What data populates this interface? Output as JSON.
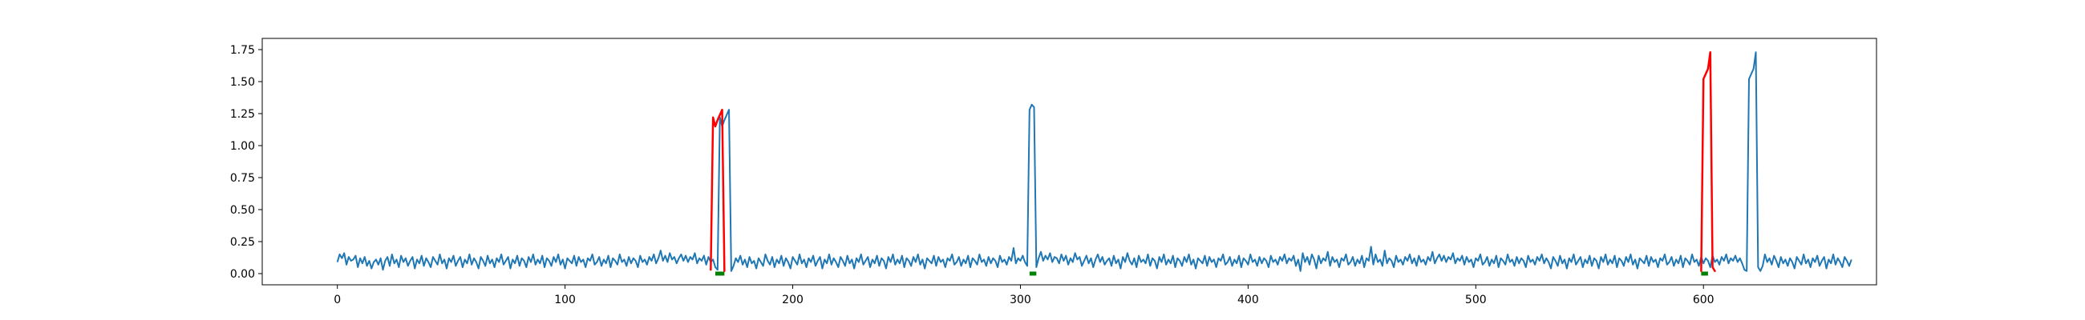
{
  "chart_data": {
    "type": "line",
    "title": "",
    "xlabel": "",
    "ylabel": "",
    "xlim": [
      -33,
      676
    ],
    "ylim": [
      -0.0875,
      1.8375
    ],
    "grid": false,
    "legend": "none",
    "x_ticks": [
      {
        "value": 0,
        "label": "0"
      },
      {
        "value": 100,
        "label": "100"
      },
      {
        "value": 200,
        "label": "200"
      },
      {
        "value": 300,
        "label": "300"
      },
      {
        "value": 400,
        "label": "400"
      },
      {
        "value": 500,
        "label": "500"
      },
      {
        "value": 600,
        "label": "600"
      }
    ],
    "y_ticks": [
      {
        "value": 0.0,
        "label": "0.00"
      },
      {
        "value": 0.25,
        "label": "0.25"
      },
      {
        "value": 0.5,
        "label": "0.50"
      },
      {
        "value": 0.75,
        "label": "0.75"
      },
      {
        "value": 1.0,
        "label": "1.00"
      },
      {
        "value": 1.25,
        "label": "1.25"
      },
      {
        "value": 1.5,
        "label": "1.50"
      },
      {
        "value": 1.75,
        "label": "1.75"
      }
    ],
    "series": [
      {
        "role": "signal",
        "color": "#1f77b4",
        "x_start": 0,
        "x_step": 1,
        "values": [
          0.09,
          0.15,
          0.12,
          0.16,
          0.07,
          0.13,
          0.1,
          0.11,
          0.14,
          0.05,
          0.12,
          0.08,
          0.13,
          0.06,
          0.1,
          0.04,
          0.09,
          0.11,
          0.07,
          0.12,
          0.03,
          0.1,
          0.13,
          0.06,
          0.15,
          0.08,
          0.11,
          0.05,
          0.14,
          0.09,
          0.12,
          0.06,
          0.1,
          0.13,
          0.04,
          0.11,
          0.08,
          0.14,
          0.06,
          0.12,
          0.09,
          0.05,
          0.13,
          0.1,
          0.07,
          0.15,
          0.08,
          0.11,
          0.04,
          0.12,
          0.09,
          0.14,
          0.06,
          0.1,
          0.13,
          0.05,
          0.11,
          0.08,
          0.15,
          0.07,
          0.12,
          0.09,
          0.04,
          0.13,
          0.1,
          0.06,
          0.14,
          0.08,
          0.11,
          0.05,
          0.12,
          0.09,
          0.15,
          0.07,
          0.1,
          0.13,
          0.04,
          0.11,
          0.08,
          0.14,
          0.06,
          0.12,
          0.1,
          0.05,
          0.13,
          0.09,
          0.15,
          0.07,
          0.11,
          0.08,
          0.14,
          0.05,
          0.12,
          0.1,
          0.06,
          0.13,
          0.09,
          0.15,
          0.07,
          0.11,
          0.04,
          0.12,
          0.1,
          0.08,
          0.14,
          0.06,
          0.13,
          0.09,
          0.11,
          0.05,
          0.12,
          0.1,
          0.15,
          0.07,
          0.09,
          0.13,
          0.06,
          0.11,
          0.08,
          0.14,
          0.05,
          0.12,
          0.1,
          0.07,
          0.15,
          0.09,
          0.11,
          0.06,
          0.13,
          0.08,
          0.12,
          0.1,
          0.05,
          0.14,
          0.09,
          0.11,
          0.07,
          0.13,
          0.1,
          0.15,
          0.08,
          0.12,
          0.18,
          0.1,
          0.14,
          0.09,
          0.16,
          0.11,
          0.13,
          0.08,
          0.12,
          0.15,
          0.1,
          0.14,
          0.09,
          0.13,
          0.11,
          0.16,
          0.08,
          0.12,
          0.1,
          0.14,
          0.07,
          0.13,
          0.09,
          0.11,
          0.05,
          0.03,
          1.22,
          1.15,
          1.2,
          1.24,
          1.28,
          0.02,
          0.06,
          0.12,
          0.09,
          0.14,
          0.07,
          0.11,
          0.05,
          0.13,
          0.08,
          0.1,
          0.04,
          0.12,
          0.09,
          0.06,
          0.15,
          0.1,
          0.07,
          0.13,
          0.05,
          0.11,
          0.08,
          0.14,
          0.06,
          0.12,
          0.09,
          0.04,
          0.13,
          0.1,
          0.07,
          0.15,
          0.08,
          0.11,
          0.05,
          0.12,
          0.09,
          0.14,
          0.06,
          0.1,
          0.13,
          0.04,
          0.11,
          0.08,
          0.15,
          0.07,
          0.12,
          0.09,
          0.05,
          0.13,
          0.1,
          0.06,
          0.14,
          0.08,
          0.11,
          0.04,
          0.12,
          0.09,
          0.15,
          0.07,
          0.1,
          0.13,
          0.05,
          0.11,
          0.08,
          0.14,
          0.06,
          0.12,
          0.1,
          0.04,
          0.13,
          0.09,
          0.15,
          0.07,
          0.11,
          0.08,
          0.14,
          0.05,
          0.12,
          0.1,
          0.06,
          0.13,
          0.09,
          0.15,
          0.07,
          0.11,
          0.04,
          0.12,
          0.1,
          0.08,
          0.14,
          0.06,
          0.13,
          0.09,
          0.11,
          0.05,
          0.12,
          0.1,
          0.15,
          0.07,
          0.09,
          0.13,
          0.06,
          0.11,
          0.08,
          0.14,
          0.05,
          0.12,
          0.1,
          0.07,
          0.15,
          0.09,
          0.11,
          0.06,
          0.13,
          0.08,
          0.12,
          0.1,
          0.05,
          0.14,
          0.09,
          0.11,
          0.07,
          0.13,
          0.1,
          0.2,
          0.08,
          0.12,
          0.1,
          0.14,
          0.09,
          0.06,
          1.28,
          1.32,
          1.3,
          0.05,
          0.12,
          0.17,
          0.1,
          0.14,
          0.11,
          0.16,
          0.09,
          0.13,
          0.12,
          0.08,
          0.15,
          0.1,
          0.14,
          0.07,
          0.12,
          0.09,
          0.16,
          0.11,
          0.13,
          0.06,
          0.1,
          0.14,
          0.08,
          0.12,
          0.05,
          0.11,
          0.15,
          0.09,
          0.13,
          0.07,
          0.1,
          0.12,
          0.06,
          0.14,
          0.08,
          0.11,
          0.04,
          0.13,
          0.09,
          0.16,
          0.1,
          0.07,
          0.12,
          0.05,
          0.14,
          0.09,
          0.11,
          0.08,
          0.15,
          0.06,
          0.12,
          0.1,
          0.04,
          0.13,
          0.09,
          0.15,
          0.07,
          0.11,
          0.08,
          0.14,
          0.05,
          0.12,
          0.1,
          0.06,
          0.13,
          0.09,
          0.15,
          0.07,
          0.11,
          0.04,
          0.12,
          0.1,
          0.08,
          0.14,
          0.06,
          0.13,
          0.09,
          0.11,
          0.05,
          0.12,
          0.1,
          0.15,
          0.07,
          0.09,
          0.13,
          0.06,
          0.11,
          0.08,
          0.14,
          0.05,
          0.12,
          0.1,
          0.07,
          0.15,
          0.09,
          0.11,
          0.06,
          0.13,
          0.08,
          0.12,
          0.1,
          0.05,
          0.14,
          0.09,
          0.11,
          0.07,
          0.13,
          0.1,
          0.15,
          0.08,
          0.12,
          0.1,
          0.14,
          0.06,
          0.11,
          0.02,
          0.16,
          0.09,
          0.13,
          0.07,
          0.15,
          0.11,
          0.04,
          0.14,
          0.08,
          0.12,
          0.1,
          0.17,
          0.06,
          0.13,
          0.09,
          0.11,
          0.05,
          0.12,
          0.1,
          0.15,
          0.07,
          0.09,
          0.13,
          0.06,
          0.11,
          0.08,
          0.14,
          0.05,
          0.12,
          0.1,
          0.21,
          0.07,
          0.15,
          0.09,
          0.11,
          0.06,
          0.18,
          0.08,
          0.12,
          0.1,
          0.05,
          0.14,
          0.09,
          0.11,
          0.07,
          0.13,
          0.1,
          0.15,
          0.08,
          0.12,
          0.06,
          0.14,
          0.09,
          0.11,
          0.07,
          0.13,
          0.1,
          0.17,
          0.08,
          0.12,
          0.15,
          0.1,
          0.14,
          0.09,
          0.13,
          0.11,
          0.16,
          0.08,
          0.12,
          0.1,
          0.14,
          0.07,
          0.13,
          0.09,
          0.11,
          0.05,
          0.12,
          0.1,
          0.15,
          0.07,
          0.09,
          0.13,
          0.06,
          0.11,
          0.08,
          0.14,
          0.05,
          0.12,
          0.1,
          0.07,
          0.15,
          0.09,
          0.11,
          0.06,
          0.13,
          0.08,
          0.12,
          0.1,
          0.05,
          0.14,
          0.09,
          0.11,
          0.07,
          0.13,
          0.1,
          0.15,
          0.08,
          0.12,
          0.09,
          0.04,
          0.13,
          0.1,
          0.06,
          0.14,
          0.08,
          0.11,
          0.04,
          0.12,
          0.09,
          0.15,
          0.07,
          0.1,
          0.13,
          0.05,
          0.11,
          0.08,
          0.14,
          0.06,
          0.12,
          0.1,
          0.04,
          0.13,
          0.09,
          0.15,
          0.07,
          0.11,
          0.08,
          0.14,
          0.05,
          0.12,
          0.1,
          0.06,
          0.13,
          0.09,
          0.15,
          0.07,
          0.11,
          0.04,
          0.12,
          0.1,
          0.08,
          0.14,
          0.06,
          0.13,
          0.09,
          0.11,
          0.05,
          0.12,
          0.1,
          0.15,
          0.07,
          0.09,
          0.13,
          0.06,
          0.11,
          0.08,
          0.14,
          0.05,
          0.12,
          0.1,
          0.07,
          0.15,
          0.09,
          0.11,
          0.06,
          0.13,
          0.08,
          0.12,
          0.1,
          0.05,
          0.14,
          0.09,
          0.11,
          0.07,
          0.13,
          0.1,
          0.15,
          0.08,
          0.12,
          0.1,
          0.14,
          0.09,
          0.12,
          0.08,
          0.03,
          0.02,
          1.52,
          1.56,
          1.6,
          1.73,
          0.05,
          0.02,
          0.06,
          0.15,
          0.09,
          0.12,
          0.07,
          0.14,
          0.1,
          0.05,
          0.13,
          0.08,
          0.11,
          0.06,
          0.12,
          0.09,
          0.04,
          0.13,
          0.1,
          0.07,
          0.15,
          0.08,
          0.11,
          0.05,
          0.12,
          0.09,
          0.14,
          0.06,
          0.1,
          0.13,
          0.04,
          0.11,
          0.08,
          0.15,
          0.07,
          0.12,
          0.09,
          0.05,
          0.13,
          0.1,
          0.06,
          0.11
        ]
      },
      {
        "role": "anomaly",
        "color": "#ff0000",
        "segments": [
          {
            "x": [
              164,
              165,
              166,
              167,
              168,
              169,
              170
            ],
            "values": [
              0.03,
              1.22,
              1.15,
              1.2,
              1.24,
              1.28,
              0.02
            ]
          },
          {
            "x": [
              599,
              600,
              601,
              602,
              603,
              604,
              605
            ],
            "values": [
              0.02,
              1.52,
              1.56,
              1.6,
              1.73,
              0.05,
              0.02
            ]
          }
        ]
      },
      {
        "role": "marker",
        "color": "#008000",
        "segments": [
          {
            "x": [
              166,
              167,
              168,
              169,
              170
            ],
            "values": [
              0,
              0,
              0,
              0,
              0
            ]
          },
          {
            "x": [
              304,
              305,
              306,
              307
            ],
            "values": [
              0,
              0,
              0,
              0
            ]
          },
          {
            "x": [
              599,
              600,
              601,
              602
            ],
            "values": [
              0,
              0,
              0,
              0
            ]
          }
        ]
      }
    ]
  }
}
